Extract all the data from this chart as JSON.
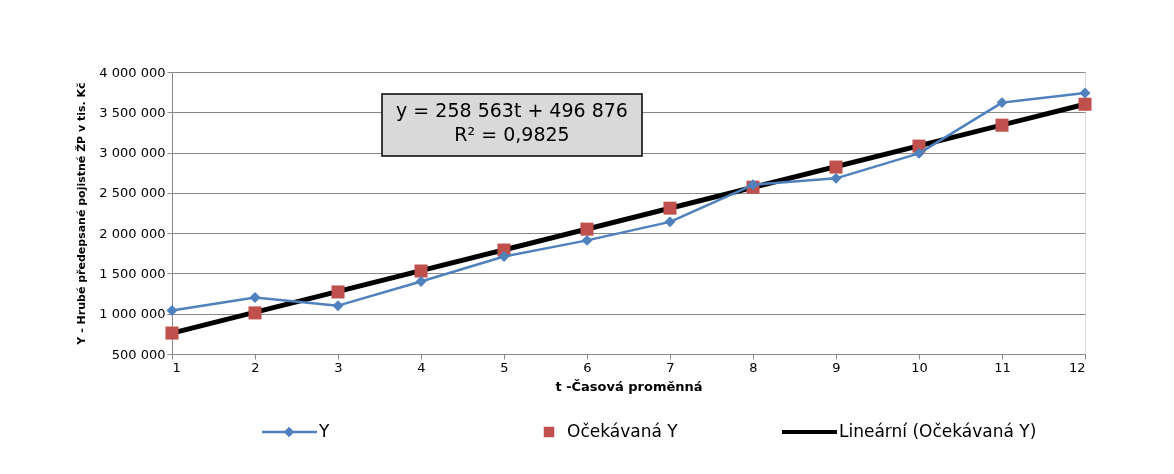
{
  "chart_data": {
    "type": "line",
    "xlabel": "t -Časová proměnná",
    "ylabel": "Y - Hrubé předepsané pojistné ŽP v tis. Kč",
    "x": [
      1,
      2,
      3,
      4,
      5,
      6,
      7,
      8,
      9,
      10,
      11,
      12
    ],
    "series": [
      {
        "name": "Y",
        "marker": "diamond",
        "color": "#4f81bd",
        "values": [
          1040000,
          1200000,
          1100000,
          1400000,
          1710000,
          1910000,
          2140000,
          2600000,
          2680000,
          2990000,
          3620000,
          3740000
        ]
      },
      {
        "name": "Očekávaná Y",
        "type": "scatter",
        "marker": "square",
        "color": "#c0504d",
        "values": [
          760000,
          1010000,
          1270000,
          1530000,
          1790000,
          2050000,
          2310000,
          2570000,
          2820000,
          3080000,
          3340000,
          3600000
        ]
      },
      {
        "name": "Lineární (Očekávaná Y)",
        "marker": "none",
        "color": "#000000",
        "x": [
          1,
          12
        ],
        "values": [
          760000,
          3600000
        ]
      }
    ],
    "xlim": [
      1,
      12
    ],
    "xticks": [
      1,
      2,
      3,
      4,
      5,
      6,
      7,
      8,
      9,
      10,
      11,
      12
    ],
    "ylim": [
      500000,
      4000000
    ],
    "yticks": [
      {
        "value": 500000,
        "label": "500 000"
      },
      {
        "value": 1000000,
        "label": "1 000 000"
      },
      {
        "value": 1500000,
        "label": "1 500 000"
      },
      {
        "value": 2000000,
        "label": "2 000 000"
      },
      {
        "value": 2500000,
        "label": "2 500 000"
      },
      {
        "value": 3000000,
        "label": "3 000 000"
      },
      {
        "value": 3500000,
        "label": "3 500 000"
      },
      {
        "value": 4000000,
        "label": "4 000 000"
      }
    ],
    "annotations": [
      "y = 258 563t + 496 876\nR² = 0,9825"
    ],
    "grid": "y",
    "legend": "bottom"
  }
}
